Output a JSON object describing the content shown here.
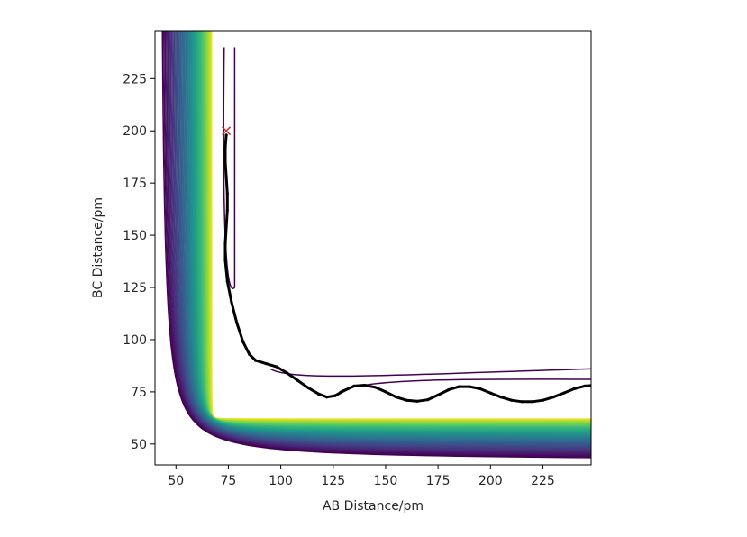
{
  "chart_data": {
    "type": "contour",
    "title": "",
    "xlabel": "AB Distance/pm",
    "ylabel": "BC Distance/pm",
    "xlim": [
      40,
      248
    ],
    "ylim": [
      40,
      248
    ],
    "xticks": [
      50,
      75,
      100,
      125,
      150,
      175,
      200,
      225
    ],
    "yticks": [
      50,
      75,
      100,
      125,
      150,
      175,
      200,
      225
    ],
    "grid": false,
    "legend": "none",
    "contours": {
      "colormap": "viridis",
      "colormap_stops": [
        "#440154",
        "#482878",
        "#3e4a89",
        "#31688e",
        "#26828e",
        "#1f9e89",
        "#35b779",
        "#6ece58",
        "#b5de2b",
        "#fde725"
      ]
    },
    "series": [
      {
        "type": "line",
        "color": "#000000",
        "x": [
          74,
          73.5,
          73.5,
          74,
          74.5,
          74.5,
          74,
          73.5,
          73.5,
          74.5,
          76.5,
          79,
          82,
          85,
          88,
          93,
          98,
          103,
          108,
          113,
          118,
          122,
          126,
          130,
          135,
          140,
          145,
          150,
          155,
          160,
          165,
          170,
          175,
          180,
          185,
          190,
          195,
          200,
          205,
          210,
          215,
          220,
          225,
          230,
          235,
          240,
          245,
          248
        ],
        "y": [
          198,
          192,
          185,
          178,
          170,
          162,
          154,
          146,
          138,
          128,
          118,
          108,
          99,
          93,
          90,
          88.5,
          87,
          84,
          80.5,
          77,
          74,
          72.5,
          73.2,
          75.5,
          77.8,
          78.2,
          77.2,
          75,
          72.5,
          71,
          70.5,
          71.2,
          73.5,
          76,
          77.5,
          77.5,
          76.5,
          74.5,
          72.5,
          71,
          70.3,
          70.3,
          71,
          72.5,
          74.5,
          76.5,
          77.8,
          78
        ]
      },
      {
        "type": "scatter",
        "marker": "x",
        "color": "#d62728",
        "x": [
          74
        ],
        "y": [
          200
        ]
      }
    ]
  }
}
